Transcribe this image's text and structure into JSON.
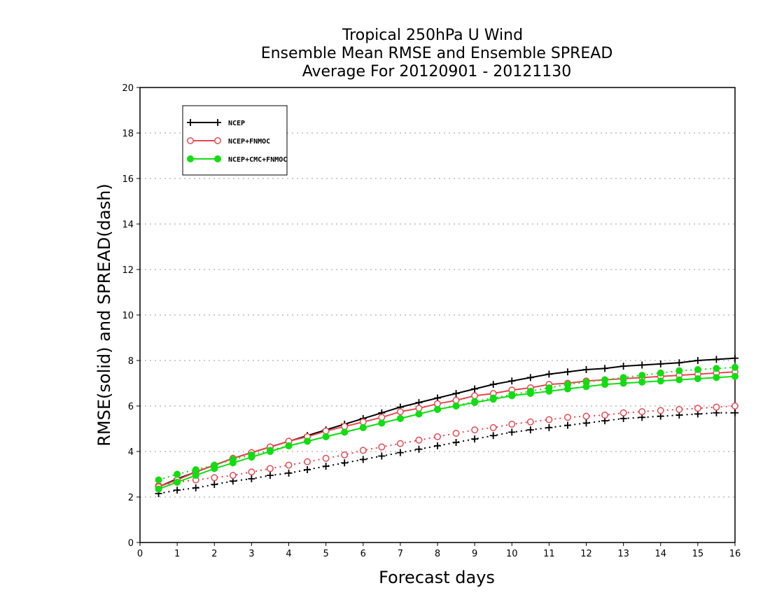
{
  "chart_data": {
    "type": "line",
    "title_lines": [
      "Tropical 250hPa U Wind",
      "Ensemble Mean RMSE and Ensemble SPREAD",
      "Average For 20120901 - 20121130"
    ],
    "xlabel": "Forecast days",
    "ylabel": "RMSE(solid) and SPREAD(dash)",
    "xlim": [
      0,
      16
    ],
    "ylim": [
      0,
      20
    ],
    "xticks": [
      "0",
      "1",
      "2",
      "3",
      "4",
      "5",
      "6",
      "7",
      "8",
      "9",
      "10",
      "11",
      "12",
      "13",
      "14",
      "15",
      "16"
    ],
    "yticks": [
      "0",
      "2",
      "4",
      "6",
      "8",
      "10",
      "12",
      "14",
      "16",
      "18",
      "20"
    ],
    "grid": "dotted horizontal",
    "legend_position": "top-left",
    "x": [
      0.5,
      1,
      1.5,
      2,
      2.5,
      3,
      3.5,
      4,
      4.5,
      5,
      5.5,
      6,
      6.5,
      7,
      7.5,
      8,
      8.5,
      9,
      9.5,
      10,
      10.5,
      11,
      11.5,
      12,
      12.5,
      13,
      13.5,
      14,
      14.5,
      15,
      15.5,
      16
    ],
    "series": [
      {
        "name": "NCEP",
        "color": "#000000",
        "marker": "plus",
        "rmse": [
          2.45,
          2.8,
          3.1,
          3.4,
          3.7,
          3.95,
          4.2,
          4.45,
          4.7,
          4.95,
          5.2,
          5.45,
          5.7,
          5.95,
          6.15,
          6.35,
          6.55,
          6.75,
          6.95,
          7.1,
          7.25,
          7.4,
          7.5,
          7.6,
          7.65,
          7.75,
          7.8,
          7.85,
          7.9,
          8.0,
          8.05,
          8.1
        ],
        "spread": [
          2.15,
          2.3,
          2.4,
          2.55,
          2.7,
          2.8,
          2.95,
          3.05,
          3.2,
          3.35,
          3.5,
          3.65,
          3.8,
          3.95,
          4.1,
          4.25,
          4.4,
          4.55,
          4.7,
          4.85,
          4.95,
          5.05,
          5.15,
          5.25,
          5.35,
          5.45,
          5.5,
          5.55,
          5.6,
          5.65,
          5.7,
          5.7
        ]
      },
      {
        "name": "NCEP+FNMOC",
        "color": "#e8474f",
        "marker": "open-circle",
        "rmse": [
          2.45,
          2.75,
          3.1,
          3.4,
          3.7,
          3.95,
          4.2,
          4.45,
          4.65,
          4.9,
          5.1,
          5.3,
          5.5,
          5.75,
          5.9,
          6.1,
          6.25,
          6.45,
          6.55,
          6.7,
          6.8,
          6.95,
          7.0,
          7.1,
          7.15,
          7.2,
          7.25,
          7.3,
          7.35,
          7.4,
          7.45,
          7.5
        ],
        "spread": [
          2.5,
          2.65,
          2.75,
          2.85,
          2.95,
          3.1,
          3.25,
          3.4,
          3.55,
          3.7,
          3.85,
          4.05,
          4.2,
          4.35,
          4.5,
          4.65,
          4.8,
          4.95,
          5.05,
          5.2,
          5.3,
          5.4,
          5.5,
          5.55,
          5.6,
          5.7,
          5.75,
          5.8,
          5.85,
          5.9,
          5.95,
          6.0
        ]
      },
      {
        "name": "NCEP+CMC+FNMOC",
        "color": "#11dd11",
        "marker": "filled-circle",
        "rmse": [
          2.35,
          2.65,
          2.95,
          3.25,
          3.5,
          3.75,
          4.0,
          4.25,
          4.45,
          4.65,
          4.85,
          5.05,
          5.25,
          5.45,
          5.65,
          5.85,
          6.0,
          6.15,
          6.3,
          6.45,
          6.55,
          6.65,
          6.75,
          6.85,
          6.95,
          7.0,
          7.05,
          7.1,
          7.15,
          7.2,
          7.25,
          7.3
        ],
        "spread": [
          2.75,
          3.0,
          3.2,
          3.4,
          3.65,
          3.85,
          4.05,
          4.25,
          4.45,
          4.65,
          4.85,
          5.05,
          5.25,
          5.45,
          5.65,
          5.85,
          6.0,
          6.2,
          6.35,
          6.5,
          6.65,
          6.8,
          6.95,
          7.05,
          7.15,
          7.25,
          7.35,
          7.45,
          7.55,
          7.6,
          7.65,
          7.7
        ]
      }
    ]
  }
}
